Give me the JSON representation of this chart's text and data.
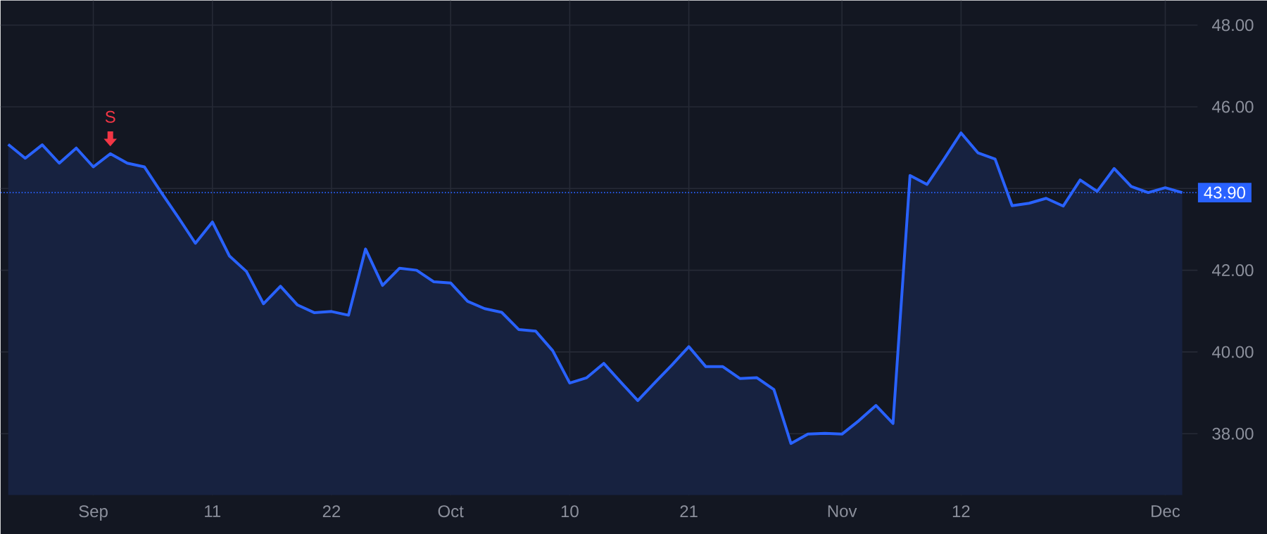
{
  "chart_data": {
    "type": "area",
    "categories": [
      null,
      null,
      null,
      null,
      null,
      "Sep",
      null,
      null,
      null,
      null,
      null,
      null,
      "11",
      null,
      null,
      null,
      null,
      null,
      null,
      "22",
      null,
      null,
      null,
      null,
      null,
      null,
      "Oct",
      null,
      null,
      null,
      null,
      null,
      null,
      "10",
      null,
      null,
      null,
      null,
      null,
      null,
      "21",
      null,
      null,
      null,
      null,
      null,
      null,
      null,
      null,
      "Nov",
      null,
      null,
      null,
      null,
      null,
      null,
      "12",
      null,
      null,
      null,
      null,
      null,
      null,
      null,
      null,
      null,
      null,
      null,
      "Dec",
      null
    ],
    "series": [
      {
        "color": "#2962ff",
        "values": [
          45.08,
          44.74,
          45.07,
          44.62,
          44.99,
          44.53,
          44.85,
          44.62,
          44.53,
          43.9,
          43.29,
          42.66,
          43.18,
          42.35,
          41.97,
          41.18,
          41.61,
          41.15,
          40.96,
          40.99,
          40.9,
          42.52,
          41.63,
          42.05,
          42.0,
          41.72,
          41.69,
          41.24,
          41.06,
          40.97,
          40.55,
          40.51,
          40.03,
          39.24,
          39.37,
          39.72,
          39.26,
          38.81,
          39.25,
          39.68,
          40.13,
          39.64,
          39.64,
          39.35,
          39.37,
          39.08,
          37.76,
          37.99,
          38.01,
          37.99,
          38.32,
          38.69,
          38.25,
          44.32,
          44.1,
          44.72,
          45.36,
          44.87,
          44.72,
          43.58,
          43.64,
          43.76,
          43.57,
          44.21,
          43.93,
          44.49,
          44.05,
          43.9,
          44.02,
          43.9
        ]
      }
    ],
    "ylim": [
      36.5,
      48.6
    ],
    "yticks": [
      {
        "value": 38,
        "label": "38.00"
      },
      {
        "value": 40,
        "label": "40.00"
      },
      {
        "value": 42,
        "label": "42.00"
      },
      {
        "value": 44,
        "label": null
      },
      {
        "value": 46,
        "label": "46.00"
      },
      {
        "value": 48,
        "label": "48.00"
      }
    ],
    "grid": true,
    "ref_lines": [
      {
        "axis": "y",
        "value": 43.9,
        "label": "43.90",
        "color": "#2962ff",
        "line_style": "dotted"
      }
    ],
    "annotations": [
      {
        "text": "S",
        "y": 44.85
      }
    ]
  }
}
